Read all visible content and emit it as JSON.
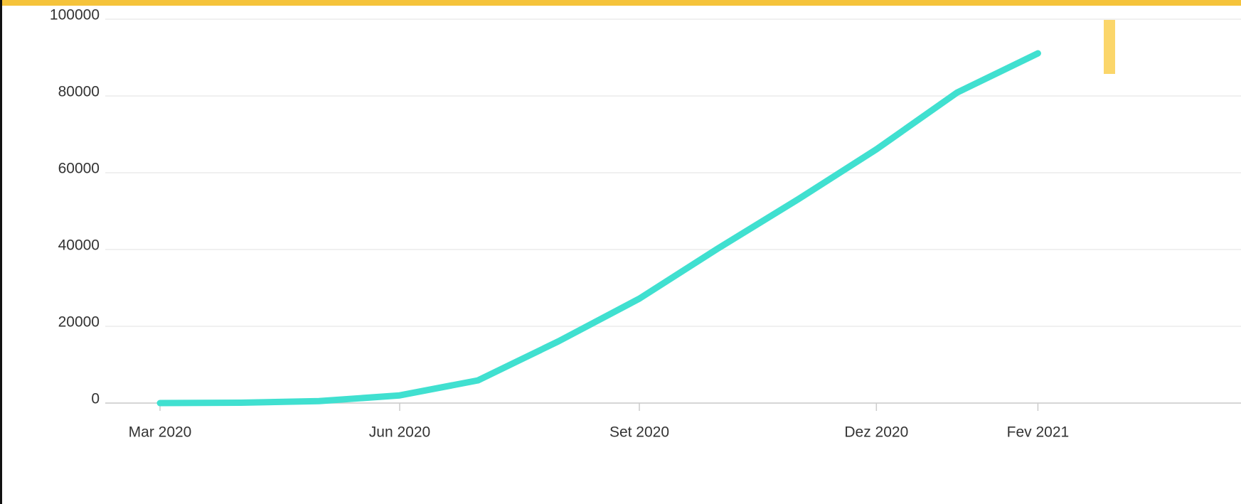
{
  "chart_data": {
    "type": "line",
    "x": [
      "2020-03",
      "2020-04",
      "2020-05",
      "2020-06",
      "2020-07",
      "2020-08",
      "2020-09",
      "2020-10",
      "2020-11",
      "2020-12",
      "2021-01",
      "2021-02"
    ],
    "series": [
      {
        "color": "#40e0d0",
        "values": [
          0,
          100,
          500,
          2000,
          5900,
          16100,
          27200,
          40200,
          53100,
          66100,
          80900,
          91100
        ]
      }
    ],
    "xticks": [
      {
        "value": "2020-03",
        "label": "Mar 2020"
      },
      {
        "value": "2020-06",
        "label": "Jun 2020"
      },
      {
        "value": "2020-09",
        "label": "Set 2020"
      },
      {
        "value": "2020-12",
        "label": "Dez 2020"
      },
      {
        "value": "2021-02",
        "label": "Fev 2021"
      }
    ],
    "ylim": [
      0,
      100000
    ],
    "yticks": [
      0,
      20000,
      40000,
      60000,
      80000,
      100000
    ],
    "grid": true
  }
}
